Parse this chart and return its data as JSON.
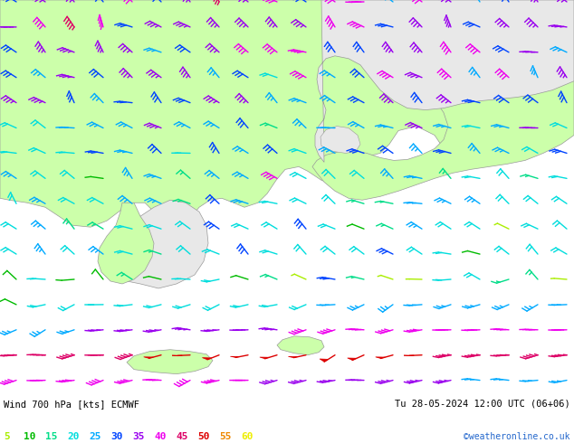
{
  "title_left": "Wind 700 hPa [kts] ECMWF",
  "title_right": "Tu 28-05-2024 12:00 UTC (06+06)",
  "credit": "©weatheronline.co.uk",
  "legend_values": [
    5,
    10,
    15,
    20,
    25,
    30,
    35,
    40,
    45,
    50,
    55,
    60
  ],
  "legend_colors": [
    "#aaee00",
    "#00bb00",
    "#00dd88",
    "#00dddd",
    "#00aaff",
    "#0044ff",
    "#9900ee",
    "#ee00ee",
    "#dd0066",
    "#dd0000",
    "#ee8800",
    "#eeee00"
  ],
  "bg_color": "#ffffff",
  "land_color": "#ccffaa",
  "sea_color": "#e8e8e8",
  "fig_width": 6.34,
  "fig_height": 4.9,
  "dpi": 100
}
